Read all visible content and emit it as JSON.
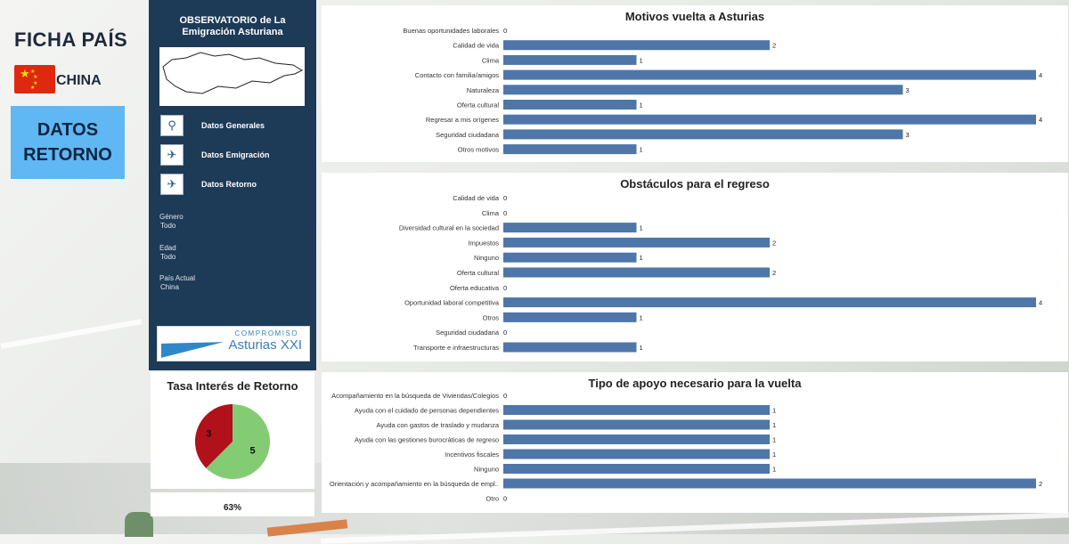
{
  "header": {
    "title": "FICHA PAÍS",
    "country": "CHINA",
    "section": "DATOS RETORNO"
  },
  "colors": {
    "navy": "#1d3a57",
    "bar": "#4e76a8",
    "pie_red": "#b0111b",
    "pie_green": "#84cc74",
    "accent": "#5fb7f3"
  },
  "sidebar": {
    "title": "OBSERVATORIO de La Emigración Asturiana",
    "nav": [
      {
        "label": "Datos Generales",
        "icon": "magnifier-icon"
      },
      {
        "label": "Datos Emigración",
        "icon": "plane-takeoff-icon"
      },
      {
        "label": "Datos Retorno",
        "icon": "plane-landing-icon"
      }
    ],
    "filters": [
      {
        "label": "Género",
        "value": "Todo"
      },
      {
        "label": "Edad",
        "value": "Todo"
      },
      {
        "label": "País Actual",
        "value": "China"
      }
    ],
    "logo": {
      "top": "COMPROMISO",
      "main": "Asturias XXI"
    }
  },
  "pie": {
    "title": "Tasa Interés de Retorno",
    "slices": [
      {
        "value": 3,
        "color": "#b0111b"
      },
      {
        "value": 5,
        "color": "#84cc74"
      }
    ],
    "percent_label": "63%"
  },
  "chart_data": [
    {
      "type": "bar",
      "title": "Motivos vuelta a Asturias",
      "categories": [
        "Buenas oportunidades laborales",
        "Calidad de vida",
        "Clima",
        "Contacto con familia/amigos",
        "Naturaleza",
        "Oferta cultural",
        "Regresar a mis orígenes",
        "Seguridad ciudadana",
        "Otros motivos"
      ],
      "values": [
        0,
        2,
        1,
        4,
        3,
        1,
        4,
        3,
        1
      ],
      "xlim": [
        0,
        4
      ]
    },
    {
      "type": "bar",
      "title": "Obstáculos para el regreso",
      "categories": [
        "Calidad de vida",
        "Clima",
        "Diversidad cultural en la sociedad",
        "Impuestos",
        "Ninguno",
        "Oferta cultural",
        "Oferta educativa",
        "Oportunidad laboral competitiva",
        "Otros",
        "Seguridad ciudadana",
        "Transporte e infraestructuras"
      ],
      "values": [
        0,
        0,
        1,
        2,
        1,
        2,
        0,
        4,
        1,
        0,
        1
      ],
      "xlim": [
        0,
        4
      ]
    },
    {
      "type": "bar",
      "title": "Tipo de apoyo necesario para la vuelta",
      "categories": [
        "Acompañamiento en la búsqueda de Viviendas/Colegios",
        "Ayuda con el cuidado de personas dependientes",
        "Ayuda con gastos de traslado y mudanza",
        "Ayuda con las gestiones burocráticas de regreso",
        "Incentivos fiscales",
        "Ninguno",
        "Orientación y acompañamiento en la búsqueda de empl..",
        "Otro"
      ],
      "values": [
        0,
        1,
        1,
        1,
        1,
        1,
        2,
        0
      ],
      "xlim": [
        0,
        2
      ]
    }
  ]
}
